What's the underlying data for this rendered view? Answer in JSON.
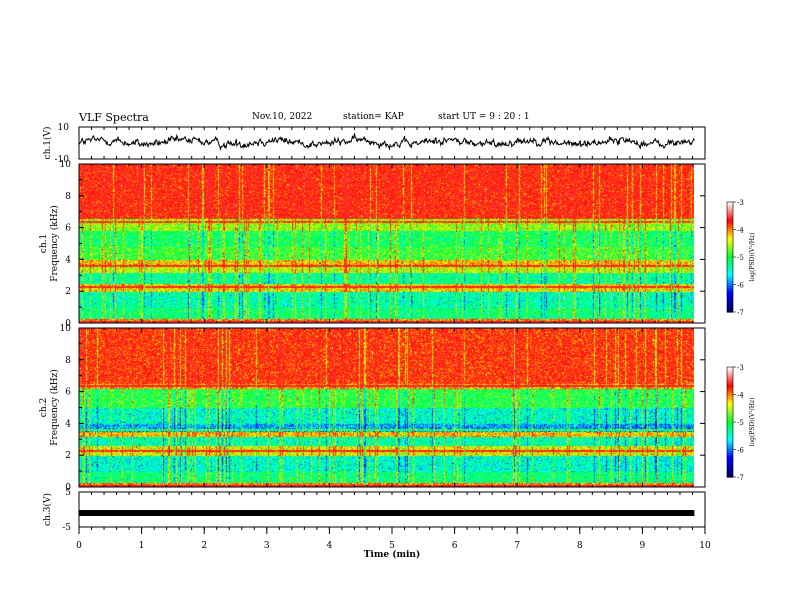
{
  "header": {
    "title": "VLF Spectra",
    "date": "Nov.10, 2022",
    "station": "station= KAP",
    "start_ut": "start  UT =   9 : 20 : 1"
  },
  "chart_data": [
    {
      "type": "line",
      "id": "ch1-waveform",
      "ylabel": "ch.1(V)",
      "ylim": [
        -10,
        10
      ],
      "yticks": [
        "10",
        "-10"
      ],
      "x_range_min": [
        0,
        9.83
      ],
      "series_note": "dense noisy voltage trace"
    },
    {
      "type": "heatmap",
      "id": "ch1-spectrogram",
      "ylabel": "ch.1\nFrequency (kHz)",
      "ylim": [
        0,
        10
      ],
      "yticks": [
        "0",
        "2",
        "4",
        "6",
        "8",
        "10"
      ],
      "x_range_min": [
        0,
        9.83
      ],
      "colorbar": {
        "label": "log(PSD)(V²/Hz)",
        "ticks": [
          "-3",
          "-4",
          "-5",
          "-6",
          "-7"
        ],
        "range": [
          -7,
          -3
        ]
      },
      "bands_khz": [
        {
          "range": [
            0.0,
            0.3
          ],
          "level": -4.0
        },
        {
          "range": [
            0.3,
            1.0
          ],
          "level": -5.2
        },
        {
          "range": [
            1.0,
            2.0
          ],
          "level": -5.4
        },
        {
          "range": [
            2.0,
            2.5
          ],
          "level": -4.3
        },
        {
          "range": [
            2.5,
            3.2
          ],
          "level": -5.3
        },
        {
          "range": [
            3.2,
            3.6
          ],
          "level": -4.5
        },
        {
          "range": [
            3.6,
            4.0
          ],
          "level": -4.2
        },
        {
          "range": [
            4.0,
            4.8
          ],
          "level": -4.9
        },
        {
          "range": [
            4.8,
            5.8
          ],
          "level": -5.1
        },
        {
          "range": [
            5.8,
            6.6
          ],
          "level": -4.6
        },
        {
          "range": [
            6.6,
            10.0
          ],
          "level": -3.6
        }
      ]
    },
    {
      "type": "heatmap",
      "id": "ch2-spectrogram",
      "ylabel": "ch.2\nFrequency (kHz)",
      "ylim": [
        0,
        10
      ],
      "yticks": [
        "0",
        "2",
        "4",
        "6",
        "8",
        "10"
      ],
      "x_range_min": [
        0,
        9.83
      ],
      "colorbar": {
        "label": "log(PSD)(V²/Hz)",
        "ticks": [
          "-3",
          "-4",
          "-5",
          "-6",
          "-7"
        ],
        "range": [
          -7,
          -3
        ]
      },
      "bands_khz": [
        {
          "range": [
            0.0,
            0.3
          ],
          "level": -4.0
        },
        {
          "range": [
            0.3,
            1.0
          ],
          "level": -5.2
        },
        {
          "range": [
            1.0,
            2.0
          ],
          "level": -5.5
        },
        {
          "range": [
            2.0,
            2.6
          ],
          "level": -4.4
        },
        {
          "range": [
            2.6,
            3.2
          ],
          "level": -5.4
        },
        {
          "range": [
            3.2,
            3.5
          ],
          "level": -4.2
        },
        {
          "range": [
            3.5,
            4.0
          ],
          "level": -5.9
        },
        {
          "range": [
            4.0,
            5.0
          ],
          "level": -5.5
        },
        {
          "range": [
            5.0,
            6.2
          ],
          "level": -5.0
        },
        {
          "range": [
            6.2,
            6.5
          ],
          "level": -4.1
        },
        {
          "range": [
            6.5,
            10.0
          ],
          "level": -3.7
        }
      ]
    },
    {
      "type": "line",
      "id": "ch3-waveform",
      "ylabel": "ch.3(V)",
      "ylim": [
        -5,
        5
      ],
      "yticks": [
        "5",
        "-5"
      ],
      "x_range_min": [
        0,
        9.83
      ],
      "constant_value": -1,
      "xlabel": "Time (min)",
      "xlim": [
        0,
        10
      ],
      "xticks": [
        "0",
        "1",
        "2",
        "3",
        "4",
        "5",
        "6",
        "7",
        "8",
        "9",
        "10"
      ]
    }
  ],
  "colors": {
    "colormap": [
      "#000066",
      "#0000ff",
      "#00ffff",
      "#00ff33",
      "#ffff00",
      "#ff0000",
      "#ffffff"
    ],
    "trace": "#000000"
  }
}
